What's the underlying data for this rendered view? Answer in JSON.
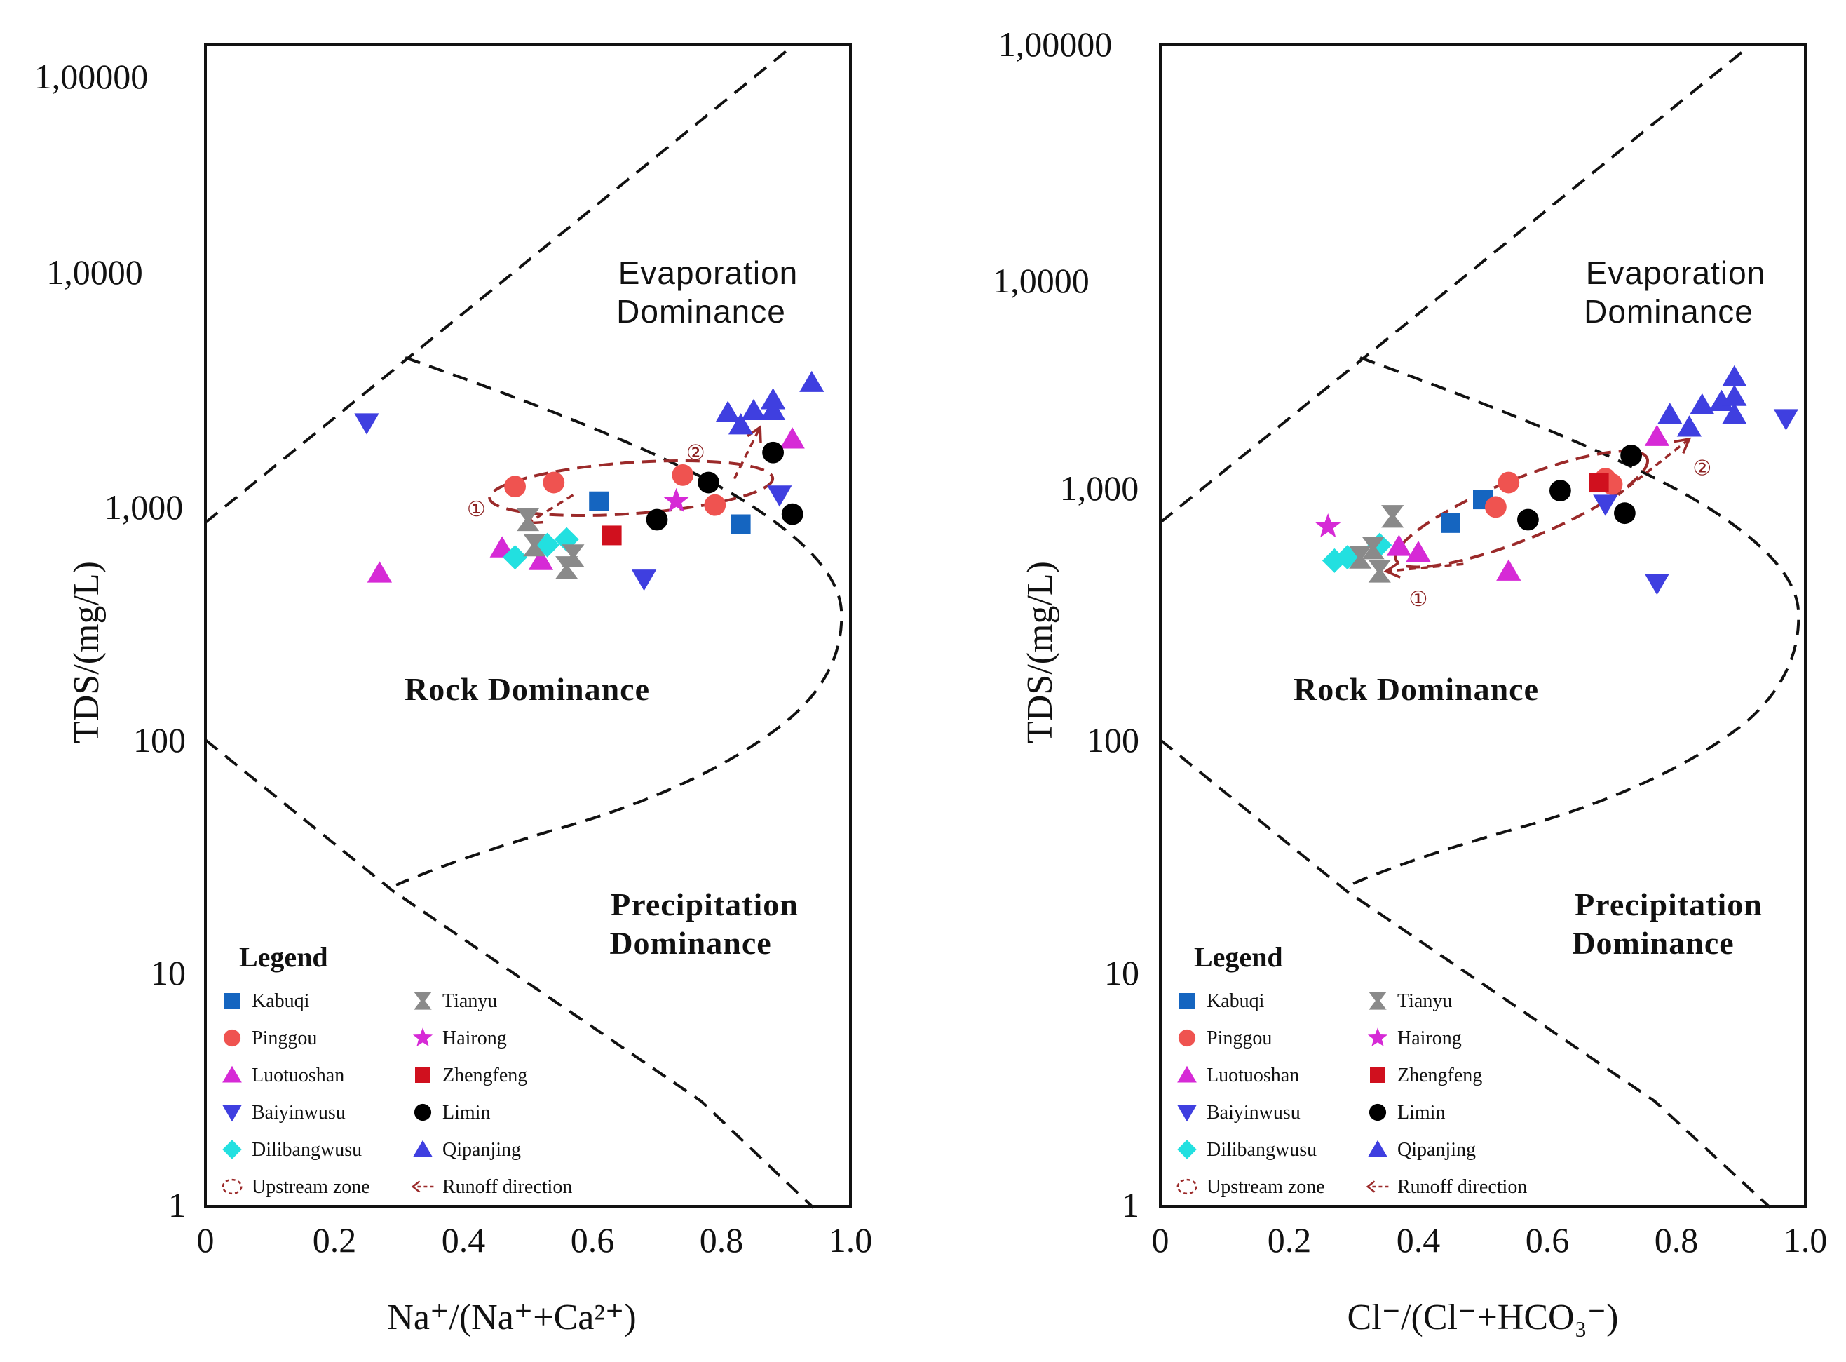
{
  "colors": {
    "Kabuqi": "#1565c0",
    "Pinggou": "#ef5350",
    "Luotuoshan": "#d62ad6",
    "Baiyinwusu": "#3f3fe0",
    "Dilibangwusu": "#22e0e0",
    "Tianyu": "#8a8a8a",
    "Hairong": "#d62ad6",
    "Zhengfeng": "#d0101e",
    "Limin": "#000000",
    "Qipanjing": "#3f3fe0",
    "runoff": "#9b2a2a"
  },
  "legend": {
    "title": "Legend",
    "items": [
      {
        "label": "Kabuqi",
        "symbol": "square",
        "key": "Kabuqi"
      },
      {
        "label": "Pinggou",
        "symbol": "circle",
        "key": "Pinggou"
      },
      {
        "label": "Luotuoshan",
        "symbol": "triangle-up",
        "key": "Luotuoshan"
      },
      {
        "label": "Baiyinwusu",
        "symbol": "triangle-down",
        "key": "Baiyinwusu"
      },
      {
        "label": "Dilibangwusu",
        "symbol": "diamond",
        "key": "Dilibangwusu"
      },
      {
        "label": "Upstream zone",
        "symbol": "ellipse",
        "key": "runoff"
      },
      {
        "label": "Tianyu",
        "symbol": "hourglass",
        "key": "Tianyu"
      },
      {
        "label": "Hairong",
        "symbol": "star",
        "key": "Hairong"
      },
      {
        "label": "Zhengfeng",
        "symbol": "square",
        "key": "Zhengfeng"
      },
      {
        "label": "Limin",
        "symbol": "circle",
        "key": "Limin"
      },
      {
        "label": "Qipanjing",
        "symbol": "triangle-up",
        "key": "Qipanjing"
      },
      {
        "label": "Runoff direction",
        "symbol": "arrow",
        "key": "runoff"
      }
    ]
  },
  "chart_data": [
    {
      "type": "scatter",
      "xlabel": "Na⁺/(Na⁺+Ca²⁺)",
      "ylabel": "TDS/(mg/L)",
      "xlim": [
        0,
        1.0
      ],
      "ylim": [
        1,
        100000
      ],
      "y_scale": "log",
      "x_ticks": [
        "0",
        "0.2",
        "0.4",
        "0.6",
        "0.8",
        "1.0"
      ],
      "y_ticks": [
        "1",
        "10",
        "100",
        "1,000",
        "1,0000",
        "1,00000"
      ],
      "regions": {
        "evaporation": [
          "Evaporation",
          "Dominance"
        ],
        "rock": "Rock Dominance",
        "precipitation": [
          "Precipitation",
          "Dominance"
        ]
      },
      "markers": [
        "①",
        "②"
      ],
      "series": [
        {
          "name": "Kabuqi",
          "points": [
            [
              0.61,
              1080
            ],
            [
              0.83,
              860
            ]
          ]
        },
        {
          "name": "Pinggou",
          "points": [
            [
              0.48,
              1250
            ],
            [
              0.54,
              1300
            ],
            [
              0.74,
              1400
            ],
            [
              0.79,
              1040
            ]
          ]
        },
        {
          "name": "Luotuoshan",
          "points": [
            [
              0.27,
              530
            ],
            [
              0.46,
              680
            ],
            [
              0.52,
              600
            ],
            [
              0.91,
              2000
            ]
          ]
        },
        {
          "name": "Baiyinwusu",
          "points": [
            [
              0.25,
              2350
            ],
            [
              0.68,
              500
            ],
            [
              0.89,
              1150
            ]
          ]
        },
        {
          "name": "Dilibangwusu",
          "points": [
            [
              0.48,
              620
            ],
            [
              0.53,
              700
            ],
            [
              0.56,
              740
            ]
          ]
        },
        {
          "name": "Tianyu",
          "points": [
            [
              0.5,
              900
            ],
            [
              0.51,
              700
            ],
            [
              0.56,
              560
            ],
            [
              0.57,
              630
            ]
          ]
        },
        {
          "name": "Hairong",
          "points": [
            [
              0.73,
              1080
            ]
          ]
        },
        {
          "name": "Zhengfeng",
          "points": [
            [
              0.63,
              770
            ]
          ]
        },
        {
          "name": "Limin",
          "points": [
            [
              0.7,
              900
            ],
            [
              0.78,
              1300
            ],
            [
              0.88,
              1750
            ],
            [
              0.91,
              950
            ]
          ]
        },
        {
          "name": "Qipanjing",
          "points": [
            [
              0.81,
              2600
            ],
            [
              0.83,
              2300
            ],
            [
              0.85,
              2650
            ],
            [
              0.88,
              2650
            ],
            [
              0.88,
              2950
            ],
            [
              0.94,
              3500
            ]
          ]
        }
      ],
      "upstream_zone": {
        "cx": 0.66,
        "cy": 1230,
        "rx": 0.22,
        "ry_log": 0.11,
        "tilt_deg": 4
      },
      "arrows": [
        {
          "from": [
            0.57,
            1150
          ],
          "to": [
            0.5,
            870
          ],
          "label": "①",
          "label_at": [
            0.42,
            1000
          ]
        },
        {
          "from": [
            0.82,
            1350
          ],
          "to": [
            0.86,
            2250
          ],
          "label": "②",
          "label_at": [
            0.76,
            1750
          ]
        }
      ]
    },
    {
      "type": "scatter",
      "xlabel": "Cl⁻/(Cl⁻+HCO₃⁻)",
      "ylabel": "TDS/(mg/L)",
      "xlim": [
        0,
        1.0
      ],
      "ylim": [
        1,
        100000
      ],
      "y_scale": "log",
      "x_ticks": [
        "0",
        "0.2",
        "0.4",
        "0.6",
        "0.8",
        "1.0"
      ],
      "y_ticks": [
        "1",
        "10",
        "100",
        "1,000",
        "1,0000",
        "1,00000"
      ],
      "regions": {
        "evaporation": [
          "Evaporation",
          "Dominance"
        ],
        "rock": "Rock Dominance",
        "precipitation": [
          "Precipitation",
          "Dominance"
        ]
      },
      "markers": [
        "①",
        "②"
      ],
      "series": [
        {
          "name": "Kabuqi",
          "points": [
            [
              0.45,
              870
            ],
            [
              0.5,
              1100
            ]
          ]
        },
        {
          "name": "Pinggou",
          "points": [
            [
              0.52,
              1020
            ],
            [
              0.54,
              1300
            ],
            [
              0.69,
              1350
            ],
            [
              0.7,
              1280
            ]
          ]
        },
        {
          "name": "Luotuoshan",
          "points": [
            [
              0.37,
              690
            ],
            [
              0.4,
              650
            ],
            [
              0.54,
              540
            ],
            [
              0.77,
              2050
            ]
          ]
        },
        {
          "name": "Baiyinwusu",
          "points": [
            [
              0.69,
              1050
            ],
            [
              0.77,
              480
            ],
            [
              0.97,
              2450
            ]
          ]
        },
        {
          "name": "Dilibangwusu",
          "points": [
            [
              0.27,
              600
            ],
            [
              0.29,
              620
            ],
            [
              0.34,
              700
            ]
          ]
        },
        {
          "name": "Tianyu",
          "points": [
            [
              0.31,
              620
            ],
            [
              0.33,
              680
            ],
            [
              0.34,
              540
            ],
            [
              0.36,
              930
            ]
          ]
        },
        {
          "name": "Hairong",
          "points": [
            [
              0.26,
              840
            ]
          ]
        },
        {
          "name": "Zhengfeng",
          "points": [
            [
              0.68,
              1300
            ]
          ]
        },
        {
          "name": "Limin",
          "points": [
            [
              0.57,
              900
            ],
            [
              0.62,
              1200
            ],
            [
              0.72,
              960
            ],
            [
              0.73,
              1700
            ]
          ]
        },
        {
          "name": "Qipanjing",
          "points": [
            [
              0.79,
              2550
            ],
            [
              0.82,
              2250
            ],
            [
              0.84,
              2800
            ],
            [
              0.87,
              2900
            ],
            [
              0.89,
              2550
            ],
            [
              0.89,
              3050
            ],
            [
              0.89,
              3700
            ]
          ]
        }
      ],
      "upstream_zone": {
        "cx": 0.56,
        "cy": 1000,
        "rx": 0.21,
        "ry_log": 0.13,
        "tilt_deg": 22
      },
      "arrows": [
        {
          "from": [
            0.47,
            580
          ],
          "to": [
            0.35,
            540
          ],
          "label": "①",
          "label_at": [
            0.4,
            410
          ]
        },
        {
          "from": [
            0.71,
            1150
          ],
          "to": [
            0.82,
            2000
          ],
          "label": "②",
          "label_at": [
            0.84,
            1500
          ]
        }
      ]
    }
  ]
}
